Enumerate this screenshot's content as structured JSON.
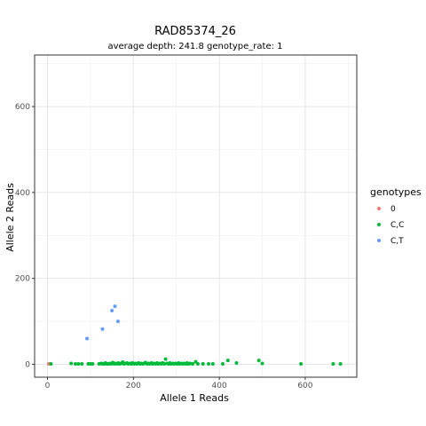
{
  "chart_data": {
    "type": "scatter",
    "title": "RAD85374_26",
    "subtitle": "average depth:  241.8  genotype_rate:  1",
    "xlabel": "Allele 1 Reads",
    "ylabel": "Allele 2 Reads",
    "xlim": [
      -30,
      720
    ],
    "ylim": [
      -30,
      720
    ],
    "x_ticks": [
      0,
      200,
      400,
      600
    ],
    "y_ticks": [
      0,
      200,
      400,
      600
    ],
    "grid": true,
    "legend": {
      "title": "genotypes",
      "placement": "right",
      "entries": [
        {
          "label": "0",
          "color": "#F8766D"
        },
        {
          "label": "C,C",
          "color": "#00BA38"
        },
        {
          "label": "C,T",
          "color": "#619CFF"
        }
      ]
    },
    "series": [
      {
        "name": "0",
        "color": "#F8766D",
        "points": [
          [
            3,
            1
          ]
        ]
      },
      {
        "name": "C,C",
        "color": "#00BA38",
        "points": [
          [
            8,
            1
          ],
          [
            55,
            2
          ],
          [
            65,
            1
          ],
          [
            72,
            1
          ],
          [
            80,
            1
          ],
          [
            95,
            1
          ],
          [
            100,
            1
          ],
          [
            105,
            1
          ],
          [
            120,
            1
          ],
          [
            125,
            2
          ],
          [
            128,
            1
          ],
          [
            132,
            1
          ],
          [
            135,
            3
          ],
          [
            138,
            1
          ],
          [
            142,
            1
          ],
          [
            145,
            2
          ],
          [
            148,
            1
          ],
          [
            152,
            4
          ],
          [
            155,
            1
          ],
          [
            158,
            2
          ],
          [
            162,
            1
          ],
          [
            165,
            3
          ],
          [
            168,
            1
          ],
          [
            172,
            2
          ],
          [
            175,
            5
          ],
          [
            178,
            1
          ],
          [
            182,
            2
          ],
          [
            185,
            3
          ],
          [
            188,
            1
          ],
          [
            192,
            2
          ],
          [
            195,
            1
          ],
          [
            198,
            3
          ],
          [
            202,
            1
          ],
          [
            205,
            2
          ],
          [
            208,
            1
          ],
          [
            212,
            3
          ],
          [
            215,
            1
          ],
          [
            218,
            2
          ],
          [
            222,
            1
          ],
          [
            225,
            2
          ],
          [
            228,
            4
          ],
          [
            232,
            1
          ],
          [
            235,
            2
          ],
          [
            238,
            1
          ],
          [
            242,
            3
          ],
          [
            245,
            1
          ],
          [
            248,
            2
          ],
          [
            252,
            1
          ],
          [
            255,
            3
          ],
          [
            258,
            1
          ],
          [
            262,
            2
          ],
          [
            265,
            1
          ],
          [
            268,
            3
          ],
          [
            272,
            1
          ],
          [
            275,
            12
          ],
          [
            278,
            2
          ],
          [
            282,
            1
          ],
          [
            285,
            3
          ],
          [
            288,
            1
          ],
          [
            292,
            2
          ],
          [
            295,
            1
          ],
          [
            298,
            2
          ],
          [
            302,
            1
          ],
          [
            305,
            3
          ],
          [
            308,
            1
          ],
          [
            312,
            2
          ],
          [
            315,
            1
          ],
          [
            318,
            2
          ],
          [
            322,
            1
          ],
          [
            325,
            3
          ],
          [
            328,
            1
          ],
          [
            332,
            2
          ],
          [
            338,
            1
          ],
          [
            345,
            6
          ],
          [
            350,
            1
          ],
          [
            362,
            1
          ],
          [
            375,
            1
          ],
          [
            385,
            1
          ],
          [
            408,
            1
          ],
          [
            420,
            9
          ],
          [
            440,
            3
          ],
          [
            492,
            9
          ],
          [
            500,
            2
          ],
          [
            590,
            1
          ],
          [
            665,
            1
          ],
          [
            682,
            1
          ]
        ]
      },
      {
        "name": "C,T",
        "color": "#619CFF",
        "points": [
          [
            92,
            60
          ],
          [
            128,
            82
          ],
          [
            150,
            125
          ],
          [
            157,
            135
          ],
          [
            164,
            100
          ]
        ]
      }
    ]
  }
}
